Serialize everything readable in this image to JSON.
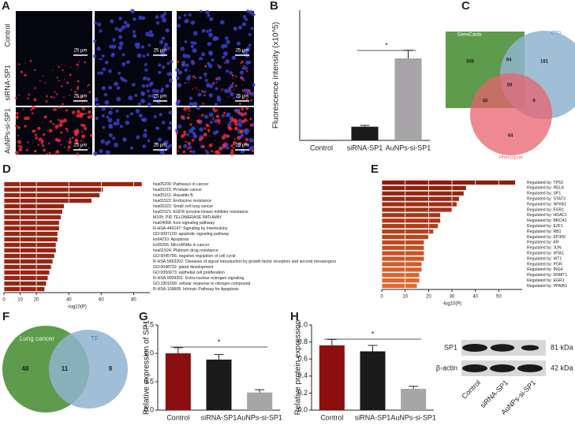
{
  "panel_letters": [
    "A",
    "B",
    "C",
    "D",
    "E",
    "F",
    "G",
    "H"
  ],
  "micrographs": {
    "rows": [
      "Control",
      "siRNA-SP1",
      "AuNPs-si-SP1"
    ],
    "scale_bar": "25 μm"
  },
  "venn_c": {
    "sets": [
      "GeneCards",
      "CTD",
      "Phenolyzer"
    ],
    "regions": [
      308,
      94,
      181,
      59,
      40,
      9,
      44
    ]
  },
  "venn_f": {
    "sets": [
      "Lung cancer",
      "TF"
    ],
    "regions": [
      48,
      11,
      9
    ]
  },
  "blot": {
    "proteins": [
      "SP1",
      "β-actin"
    ],
    "sizes": [
      "81 kDa",
      "42 kDa"
    ],
    "lanes": [
      "Control",
      "siRNA-SP1",
      "AuNPs-si-SP1"
    ]
  },
  "chart_data": [
    {
      "type": "bar",
      "ylabel": "Fluorescence intensity (x10^5)",
      "categories": [
        "Control",
        "siRNA-SP1",
        "AuNPs-si-SP1"
      ],
      "values": [
        0.1,
        4.2,
        25.2
      ],
      "errors": [
        0,
        0.4,
        2.5
      ],
      "colors": [
        "#111111",
        "#1a1a1a",
        "#a7a5a8"
      ],
      "ylim": [
        0,
        40
      ],
      "annotations": [
        "*"
      ]
    },
    {
      "type": "horizontal_bar",
      "xlabel": "-log10(P)",
      "categories": [
        "hsa05200: Pathways in cancer",
        "hsa05215: Prostate cancer",
        "hsa05161: Hepatitis B",
        "hsa01522: Endocrine resistance",
        "hsa05222: Small cell lung cancer",
        "hsa01521: EGFR tyrosine kinase inhibitor resistance",
        "M105: PID TELOMERASE PATHWAY",
        "hsa04068: foxo signaling pathway",
        "R-HSA-449147: Signaling by Interleukins",
        "GO:0097190: apoptotic signaling pathway",
        "ko04210: Apoptosis",
        "ko05206: MicroRNAs in cancer",
        "hsa01524: Platinum drug resistance",
        "GO:0045786: negative regulation of cell cycle",
        "R-HSA-5663202: Diseases of signal transduction by growth factor receptors and second messengers",
        "GO:0048732: gland development",
        "GO:0050673: epithelial cell proliferation",
        "R-HSA-9009391: Extra-nuclear estrogen signaling",
        "GO:1901699: cellular response to nitrogen compound",
        "R-HSA-109606: Intrinsic Pathway for Apoptosis"
      ],
      "values": [
        85,
        61,
        59,
        54,
        37,
        36,
        35,
        34,
        34,
        33,
        33,
        32,
        32,
        31,
        30,
        29,
        28,
        27,
        26,
        25
      ],
      "colors": [
        "#9a2412",
        "#9a2412"
      ],
      "xlim": [
        0,
        90
      ],
      "xticks": [
        0,
        10,
        20,
        40,
        60,
        80
      ],
      "grid": true
    },
    {
      "type": "horizontal_bar",
      "xlabel": "-log10(P)",
      "categories": [
        "Regulated by: TP53",
        "Regulated by: RELA",
        "Regulated by: SP1",
        "Regulated by: STAT3",
        "Regulated by: NFKB1",
        "Regulated by: ESR1",
        "Regulated by: HDAC1",
        "Regulated by: BRCA1",
        "Regulated by: E2F1",
        "Regulated by: RB1",
        "Regulated by: EP300",
        "Regulated by: AR",
        "Regulated by: JUN",
        "Regulated by: MTA1",
        "Regulated by: WT1",
        "Regulated by: PGR",
        "Regulated by: ING4",
        "Regulated by: DNMT1",
        "Regulated by: EGR1",
        "Regulated by: PPARG"
      ],
      "values": [
        57,
        36,
        35,
        33,
        32,
        30,
        25,
        25,
        24,
        22,
        20,
        18,
        18,
        18,
        18,
        17,
        17,
        16,
        16,
        15
      ],
      "colors": [
        "#8e1c0c",
        "#e8692c"
      ],
      "xlim": [
        0,
        60
      ],
      "xticks": [
        0,
        10,
        20,
        30,
        40,
        50
      ],
      "grid": true
    },
    {
      "type": "bar",
      "ylabel": "Relative expression of SP1",
      "categories": [
        "Control",
        "siRNA-SP1",
        "AuNPs-si-SP1"
      ],
      "values": [
        1.0,
        0.89,
        0.31
      ],
      "errors": [
        0.1,
        0.09,
        0.05
      ],
      "colors": [
        "#8b0f0f",
        "#1a1a1a",
        "#a7a5a8"
      ],
      "ylim": [
        0,
        1.5
      ],
      "yticks": [
        {
          "value": 0,
          "label": "0.0"
        },
        {
          "value": 0.5,
          "label": "0.5"
        },
        {
          "value": 1,
          "label": "1.0"
        },
        {
          "value": 1.5,
          "label": "1.5"
        }
      ],
      "annotations": [
        "*"
      ]
    },
    {
      "type": "bar",
      "ylabel": "Relative protein expression",
      "categories": [
        "Control",
        "siRNA-SP1",
        "AuNPs-si-SP1"
      ],
      "values": [
        0.76,
        0.69,
        0.25
      ],
      "errors": [
        0.07,
        0.07,
        0.03
      ],
      "colors": [
        "#8b0f0f",
        "#1a1a1a",
        "#a7a5a8"
      ],
      "ylim": [
        0,
        1.0
      ],
      "yticks": [
        {
          "value": 0,
          "label": "0.0"
        },
        {
          "value": 0.2,
          "label": "0.2"
        },
        {
          "value": 0.4,
          "label": "0.4"
        },
        {
          "value": 0.6,
          "label": "0.6"
        },
        {
          "value": 0.8,
          "label": "0.8"
        },
        {
          "value": 1,
          "label": "1.0"
        }
      ],
      "annotations": [
        "*"
      ]
    }
  ]
}
